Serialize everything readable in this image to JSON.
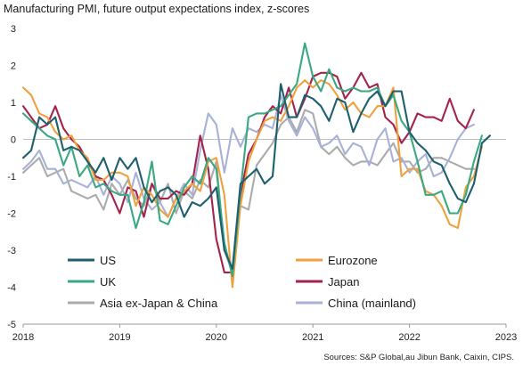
{
  "title": "Manufacturing PMI, future output expectations index, z-scores",
  "source": "Sources: S&P Global,au Jibun Bank, Caixin, CIPS.",
  "chart_data": {
    "type": "line",
    "title": "Manufacturing PMI, future output expectations index, z-scores",
    "xlabel": "",
    "ylabel": "",
    "x_start": "2018-01",
    "x_end": "2023-01",
    "x_ticks": [
      "2018",
      "2019",
      "2020",
      "2021",
      "2022",
      "2023"
    ],
    "ylim": [
      -5,
      3
    ],
    "y_ticks": [
      3,
      2,
      1,
      0,
      -1,
      -2,
      -3,
      -4,
      -5
    ],
    "grid": false,
    "legend_position": "bottom (two columns, inside plot)",
    "series": [
      {
        "name": "US",
        "color": "#1d5f6e",
        "values": [
          -0.5,
          -0.3,
          0.6,
          0.4,
          0.6,
          -0.3,
          -0.2,
          -0.3,
          -0.6,
          -0.9,
          -0.5,
          -1.1,
          -0.5,
          -0.8,
          -0.5,
          -1.3,
          -1.7,
          -1.4,
          -1.3,
          -1.5,
          -2.1,
          -1.7,
          -1.8,
          -1.6,
          -1.3,
          -3.0,
          -3.5,
          -1.2,
          -1.0,
          -0.8,
          -1.2,
          -1.0,
          1.5,
          0.6,
          0.6,
          1.2,
          1.1,
          0.9,
          0.5,
          1.1,
          1.0,
          0.2,
          0.7,
          1.1,
          1.3,
          0.9,
          1.3,
          1.3,
          0.2,
          -0.1,
          -0.3,
          -0.6,
          -0.7,
          -1.2,
          -1.6,
          -1.7,
          -1.2,
          -0.1,
          0.1
        ]
      },
      {
        "name": "Eurozone",
        "color": "#f0a13f",
        "values": [
          1.4,
          1.2,
          0.7,
          0.6,
          0.2,
          0.0,
          0.1,
          -0.3,
          -0.5,
          -1.1,
          -1.1,
          -0.9,
          -0.9,
          -1.0,
          -1.8,
          -1.3,
          -1.5,
          -1.9,
          -2.1,
          -1.6,
          -1.4,
          -1.2,
          -1.4,
          -0.6,
          -0.5,
          -1.5,
          -4.0,
          -1.8,
          -0.6,
          0.0,
          0.5,
          0.6,
          0.5,
          0.9,
          1.4,
          1.6,
          1.4,
          1.6,
          1.5,
          1.2,
          0.8,
          1.0,
          0.7,
          0.6,
          0.9,
          0.9,
          1.4,
          -1.0,
          -0.8,
          -0.8,
          -1.4,
          -1.5,
          -1.8,
          -2.3,
          -2.4,
          -1.3,
          -1.0,
          -0.2
        ]
      },
      {
        "name": "UK",
        "color": "#3aa881",
        "values": [
          0.7,
          0.5,
          0.3,
          0.1,
          0.0,
          -0.7,
          -0.2,
          -1.0,
          -0.7,
          -1.3,
          -1.2,
          -1.4,
          -1.5,
          -1.5,
          -2.4,
          -1.7,
          -0.6,
          -2.2,
          -2.3,
          -1.8,
          -1.3,
          -1.0,
          -1.2,
          -0.5,
          -0.8,
          -2.8,
          -3.7,
          -1.4,
          0.6,
          0.7,
          0.7,
          0.8,
          0.9,
          1.2,
          1.5,
          2.6,
          1.7,
          1.3,
          1.9,
          1.4,
          1.3,
          1.4,
          1.3,
          1.3,
          1.4,
          0.9,
          1.2,
          0.5,
          0.2,
          -0.6,
          -1.5,
          -1.5,
          -1.4,
          -2.0,
          -2.0,
          -1.5,
          -0.6,
          0.1
        ]
      },
      {
        "name": "Japan",
        "color": "#a3234d",
        "values": [
          0.9,
          0.6,
          0.3,
          0.4,
          0.9,
          0.3,
          0.0,
          -0.2,
          -0.6,
          -1.0,
          -1.1,
          -1.5,
          -2.0,
          -1.3,
          -1.4,
          -2.1,
          -1.2,
          -1.6,
          -1.6,
          -1.4,
          -1.5,
          -1.2,
          0.1,
          -0.8,
          -2.7,
          -3.6,
          -3.6,
          -1.5,
          -0.4,
          0.0,
          0.6,
          0.9,
          0.7,
          1.4,
          0.6,
          1.1,
          1.7,
          1.8,
          1.8,
          1.7,
          1.1,
          1.4,
          1.8,
          1.4,
          1.5,
          0.6,
          0.4,
          -0.1,
          0.2,
          0.7,
          0.6,
          0.6,
          0.5,
          1.1,
          0.5,
          0.3,
          0.8
        ]
      },
      {
        "name": "Asia ex-Japan & China",
        "color": "#ababab",
        "values": [
          -0.9,
          -0.7,
          -0.5,
          -1.0,
          -0.9,
          -0.8,
          -1.4,
          -1.5,
          -1.6,
          -1.5,
          -1.9,
          -1.2,
          -1.5,
          -1.1,
          -1.6,
          -1.8,
          -1.2,
          -1.7,
          -1.2,
          -2.0,
          -1.4,
          -1.6,
          -1.1,
          -1.3,
          -0.6,
          -3.0,
          -3.6,
          -1.8,
          -1.9,
          -0.7,
          -0.4,
          -0.1,
          0.4,
          0.6,
          0.2,
          0.8,
          0.7,
          -0.2,
          -0.4,
          -0.2,
          -0.5,
          -0.7,
          -0.6,
          -0.6,
          -0.7,
          -0.4,
          -0.1,
          -0.6,
          -0.6,
          -0.9,
          -0.8,
          -0.5,
          -0.5,
          -0.6,
          -0.7,
          -0.8,
          -0.8
        ]
      },
      {
        "name": "China (mainland)",
        "color": "#a8b1d6",
        "values": [
          -0.8,
          -0.6,
          -0.3,
          -0.8,
          -0.8,
          -1.2,
          -1.1,
          -1.2,
          -1.3,
          -1.0,
          -1.5,
          -1.0,
          -1.2,
          -1.7,
          -0.9,
          -1.6,
          -1.9,
          -1.7,
          -2.1,
          -1.6,
          -1.2,
          -1.5,
          -0.3,
          0.7,
          0.4,
          -0.9,
          0.3,
          -0.2,
          0.3,
          0.2,
          0.4,
          0.3,
          1.2,
          0.5,
          0.1,
          0.6,
          0.3,
          -0.2,
          -0.1,
          0.1,
          -0.4,
          -0.1,
          -0.2,
          -0.7,
          0.0,
          0.3,
          -0.6,
          -0.5,
          -0.9,
          -0.6,
          -0.4,
          -1.0,
          -0.9,
          -0.5,
          0.0,
          0.3,
          0.4
        ]
      }
    ]
  }
}
